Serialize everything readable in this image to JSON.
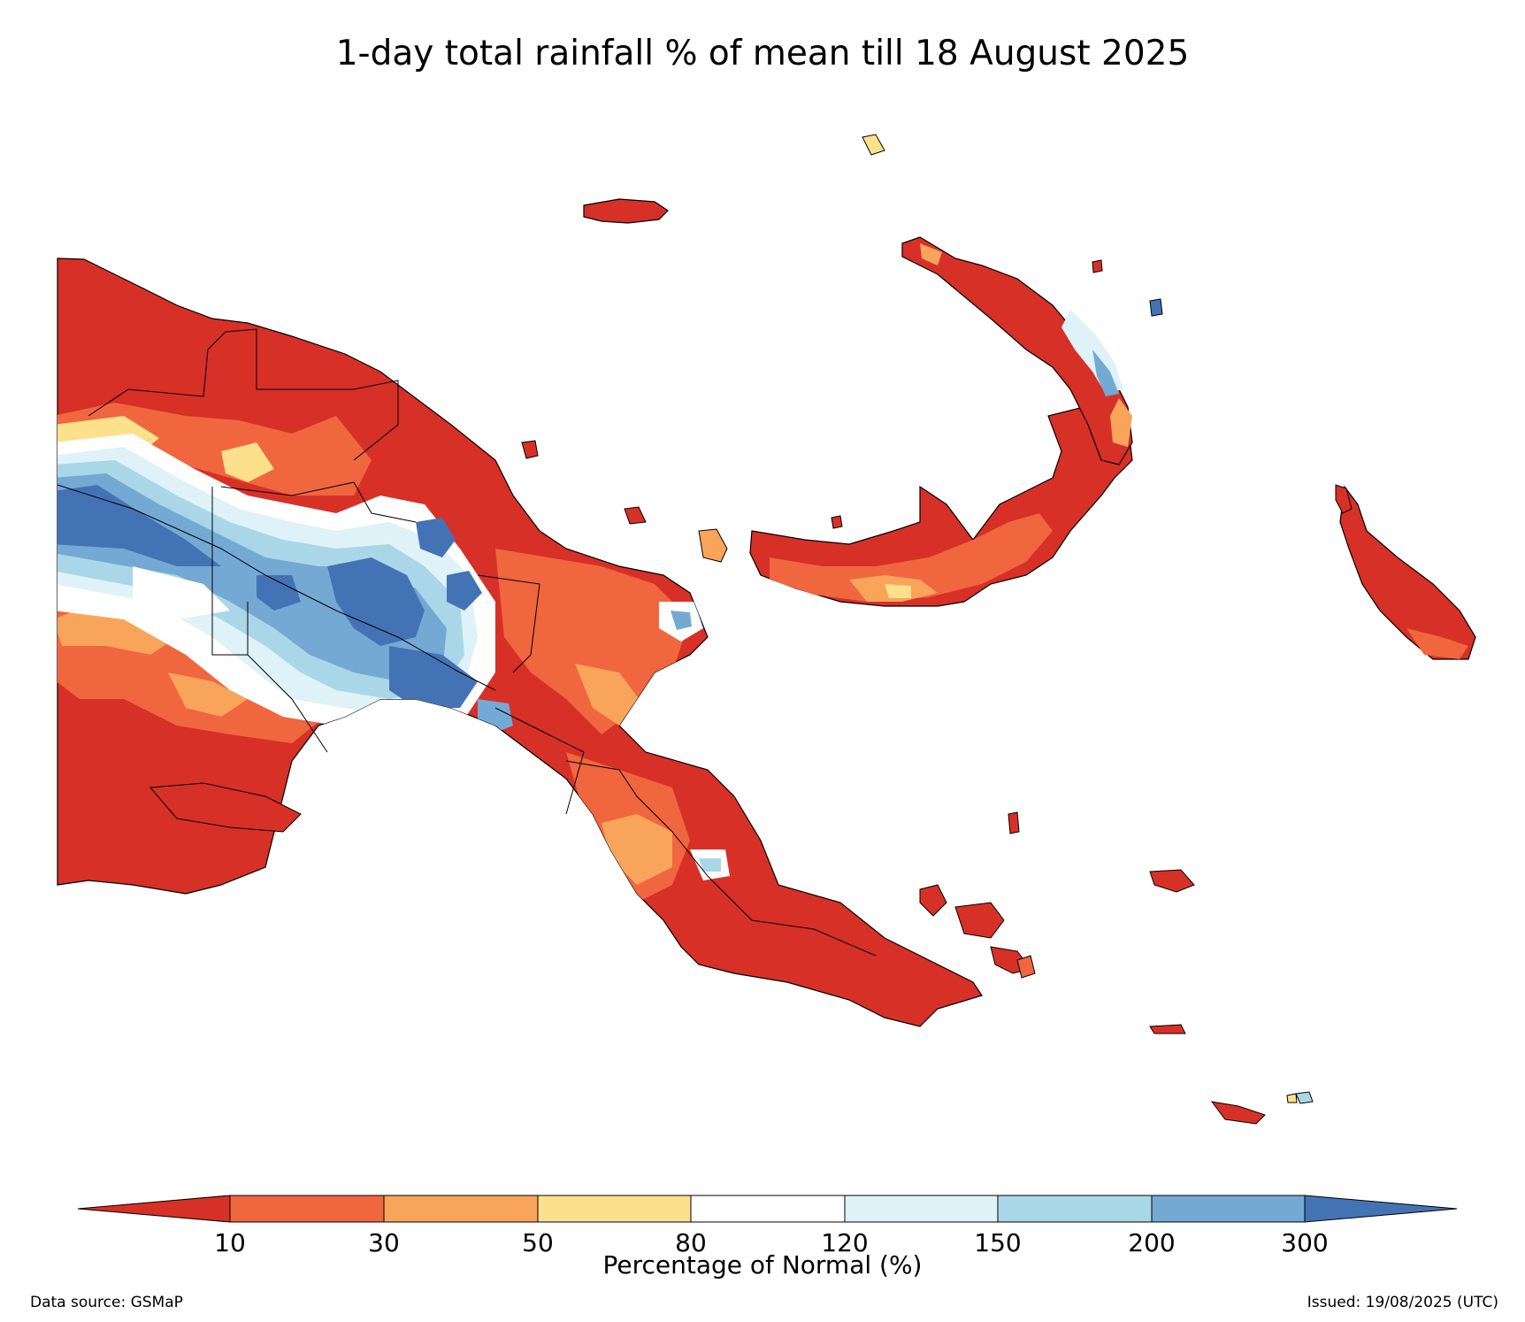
{
  "title": "1-day total rainfall % of mean till 18 August 2025",
  "colorbar": {
    "label": "Percentage of Normal (%)",
    "ticks": [
      "10",
      "30",
      "50",
      "80",
      "120",
      "150",
      "200",
      "300"
    ],
    "colors": {
      "below_10": "#d73027",
      "10_30": "#f0663f",
      "30_50": "#f8a45a",
      "50_80": "#fde08c",
      "80_120": "#ffffff",
      "120_150": "#def2f8",
      "150_200": "#a9d7e8",
      "200_300": "#74a9d4",
      "above_300": "#4473b5"
    }
  },
  "footer": {
    "source": "Data source: GSMaP",
    "issued": "Issued: 19/08/2025 (UTC)"
  }
}
